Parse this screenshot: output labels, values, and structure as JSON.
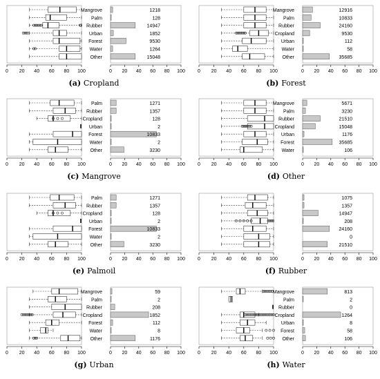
{
  "chart_data": [
    {
      "type": "boxplot",
      "caption_label": "(a)",
      "caption_text": "Cropland",
      "categories": [
        "Mangrove",
        "Palm",
        "Rubber",
        "Urban",
        "Forest",
        "Water",
        "Other"
      ],
      "counts": [
        "1218",
        "128",
        "14947",
        "1852",
        "9530",
        "1264",
        "15048"
      ],
      "bar_values": [
        3,
        1,
        35,
        4,
        22,
        3,
        35
      ],
      "boxes": [
        {
          "wlo": 30,
          "q1": 55,
          "med": 71,
          "q3": 93,
          "whi": 100,
          "out": []
        },
        {
          "wlo": 30,
          "q1": 52,
          "med": 58,
          "q3": 80,
          "whi": 100,
          "out": []
        },
        {
          "wlo": 30,
          "q1": 48,
          "med": 55,
          "q3": 70,
          "whi": 100,
          "out": [
            36,
            38,
            40,
            42,
            44,
            46,
            98,
            99
          ]
        },
        {
          "wlo": 30,
          "q1": 62,
          "med": 70,
          "q3": 80,
          "whi": 100,
          "out": [
            22,
            24,
            26,
            28
          ]
        },
        {
          "wlo": 30,
          "q1": 62,
          "med": 70,
          "q3": 98,
          "whi": 100,
          "out": []
        },
        {
          "wlo": 30,
          "q1": 70,
          "med": 80,
          "q3": 98,
          "whi": 100,
          "out": [
            36,
            38
          ]
        },
        {
          "wlo": 30,
          "q1": 70,
          "med": 80,
          "q3": 100,
          "whi": 100,
          "out": []
        }
      ],
      "box_ticks": [
        "0",
        "20",
        "40",
        "60",
        "80",
        "100"
      ],
      "bar_ticks": [
        "0",
        "20",
        "40",
        "60",
        "80",
        "100"
      ]
    },
    {
      "type": "boxplot",
      "caption_label": "(b)",
      "caption_text": "Forest",
      "categories": [
        "Mangrove",
        "Palm",
        "Rubber",
        "Cropland",
        "Urban",
        "Water",
        "Other"
      ],
      "counts": [
        "12916",
        "10833",
        "24160",
        "9530",
        "112",
        "58",
        "35685"
      ],
      "bar_values": [
        14,
        12,
        25,
        10,
        1,
        1,
        38
      ],
      "boxes": [
        {
          "wlo": 30,
          "q1": 60,
          "med": 75,
          "q3": 90,
          "whi": 100,
          "out": []
        },
        {
          "wlo": 30,
          "q1": 60,
          "med": 75,
          "q3": 90,
          "whi": 100,
          "out": []
        },
        {
          "wlo": 30,
          "q1": 60,
          "med": 75,
          "q3": 90,
          "whi": 100,
          "out": []
        },
        {
          "wlo": 30,
          "q1": 68,
          "med": 80,
          "q3": 93,
          "whi": 100,
          "out": [
            50,
            52,
            54,
            56,
            58,
            60,
            62
          ]
        },
        {
          "wlo": 30,
          "q1": 58,
          "med": 70,
          "q3": 90,
          "whi": 100,
          "out": []
        },
        {
          "wlo": 30,
          "q1": 45,
          "med": 52,
          "q3": 65,
          "whi": 100,
          "out": []
        },
        {
          "wlo": 30,
          "q1": 58,
          "med": 68,
          "q3": 88,
          "whi": 100,
          "out": []
        }
      ],
      "box_ticks": [
        "0",
        "20",
        "40",
        "60",
        "80",
        "100"
      ],
      "bar_ticks": [
        "0",
        "20",
        "40",
        "60",
        "80",
        "100"
      ]
    },
    {
      "type": "boxplot",
      "caption_label": "(c)",
      "caption_text": "Mangrove",
      "categories": [
        "Palm",
        "Rubber",
        "Cropland",
        "Urban",
        "Forest",
        "Water",
        "Other"
      ],
      "counts": [
        "1271",
        "1357",
        "128",
        "2",
        "10833",
        "2",
        "3230"
      ],
      "bar_values": [
        8,
        8,
        1,
        0.5,
        65,
        0.5,
        19
      ],
      "boxes": [
        {
          "wlo": 30,
          "q1": 58,
          "med": 70,
          "q3": 90,
          "whi": 100,
          "out": []
        },
        {
          "wlo": 30,
          "q1": 62,
          "med": 78,
          "q3": 92,
          "whi": 100,
          "out": []
        },
        {
          "wlo": 40,
          "q1": 55,
          "med": 62,
          "q3": 85,
          "whi": 100,
          "out": [
            62,
            68,
            74
          ]
        },
        null,
        {
          "wlo": 30,
          "q1": 62,
          "med": 88,
          "q3": 100,
          "whi": 100,
          "out": []
        },
        {
          "wlo": 30,
          "q1": 35,
          "med": 68,
          "q3": 100,
          "whi": 100,
          "out": []
        },
        {
          "wlo": 30,
          "q1": 55,
          "med": 65,
          "q3": 82,
          "whi": 100,
          "out": []
        }
      ],
      "box_ticks": [
        "0",
        "20",
        "40",
        "60",
        "80",
        "100"
      ],
      "bar_ticks": [
        "0",
        "20",
        "40",
        "60",
        "80",
        "100"
      ]
    },
    {
      "type": "boxplot",
      "caption_label": "(d)",
      "caption_text": "Other",
      "categories": [
        "Mangrove",
        "Palm",
        "Rubber",
        "Cropland",
        "Urban",
        "Forest",
        "Water"
      ],
      "counts": [
        "5671",
        "3230",
        "21510",
        "15048",
        "1176",
        "35685",
        "106"
      ],
      "bar_values": [
        6,
        4,
        25,
        18,
        2,
        42,
        1
      ],
      "boxes": [
        {
          "wlo": 30,
          "q1": 60,
          "med": 75,
          "q3": 90,
          "whi": 100,
          "out": []
        },
        {
          "wlo": 30,
          "q1": 60,
          "med": 75,
          "q3": 90,
          "whi": 100,
          "out": []
        },
        {
          "wlo": 30,
          "q1": 65,
          "med": 88,
          "q3": 100,
          "whi": 100,
          "out": []
        },
        {
          "wlo": 30,
          "q1": 65,
          "med": 88,
          "q3": 100,
          "whi": 100,
          "out": [
            58,
            60,
            62,
            64,
            66,
            68,
            70
          ]
        },
        {
          "wlo": 30,
          "q1": 60,
          "med": 75,
          "q3": 90,
          "whi": 100,
          "out": []
        },
        {
          "wlo": 30,
          "q1": 58,
          "med": 78,
          "q3": 92,
          "whi": 100,
          "out": []
        },
        {
          "wlo": 30,
          "q1": 55,
          "med": 60,
          "q3": 85,
          "whi": 100,
          "out": []
        }
      ],
      "box_ticks": [
        "0",
        "20",
        "40",
        "60",
        "80",
        "100"
      ],
      "bar_ticks": [
        "0",
        "20",
        "40",
        "60",
        "80",
        "100"
      ]
    },
    {
      "type": "boxplot",
      "caption_label": "(e)",
      "caption_text": "Palmoil",
      "categories": [
        "Palm",
        "Rubber",
        "Cropland",
        "Urban",
        "Forest",
        "Water",
        "Other"
      ],
      "counts": [
        "1271",
        "1357",
        "128",
        "2",
        "10833",
        "2",
        "3230"
      ],
      "bar_values": [
        8,
        8,
        1,
        0.5,
        65,
        0.5,
        19
      ],
      "boxes": [
        {
          "wlo": 30,
          "q1": 58,
          "med": 70,
          "q3": 90,
          "whi": 100,
          "out": []
        },
        {
          "wlo": 30,
          "q1": 62,
          "med": 78,
          "q3": 92,
          "whi": 100,
          "out": []
        },
        {
          "wlo": 40,
          "q1": 55,
          "med": 62,
          "q3": 85,
          "whi": 100,
          "out": [
            62,
            68,
            74
          ]
        },
        null,
        {
          "wlo": 30,
          "q1": 62,
          "med": 88,
          "q3": 100,
          "whi": 100,
          "out": []
        },
        {
          "wlo": 30,
          "q1": 35,
          "med": 68,
          "q3": 100,
          "whi": 100,
          "out": []
        },
        {
          "wlo": 30,
          "q1": 55,
          "med": 65,
          "q3": 82,
          "whi": 100,
          "out": []
        }
      ],
      "box_ticks": [
        "0",
        "20",
        "40",
        "60",
        "80",
        "100"
      ],
      "bar_ticks": [
        "0",
        "20",
        "40",
        "60",
        "80",
        "100"
      ]
    },
    {
      "type": "boxplot",
      "caption_label": "(f)",
      "caption_text": "Rubber",
      "categories": [
        "",
        "",
        "",
        "",
        "",
        "",
        ""
      ],
      "counts": [
        "1075",
        "1357",
        "14947",
        "208",
        "24160",
        "0",
        "21510"
      ],
      "bar_values": [
        2,
        2,
        22,
        1,
        38,
        0,
        35
      ],
      "boxes": [
        {
          "wlo": 30,
          "q1": 65,
          "med": 75,
          "q3": 92,
          "whi": 100,
          "out": []
        },
        {
          "wlo": 30,
          "q1": 62,
          "med": 72,
          "q3": 90,
          "whi": 100,
          "out": []
        },
        {
          "wlo": 30,
          "q1": 65,
          "med": 78,
          "q3": 92,
          "whi": 100,
          "out": []
        },
        {
          "wlo": 30,
          "q1": 70,
          "med": 82,
          "q3": 92,
          "whi": 100,
          "out": [
            50,
            55,
            60,
            65,
            70,
            93,
            95,
            97,
            99
          ]
        },
        {
          "wlo": 30,
          "q1": 60,
          "med": 72,
          "q3": 90,
          "whi": 100,
          "out": []
        },
        {
          "wlo": 30,
          "q1": 60,
          "med": 80,
          "q3": 95,
          "whi": 100,
          "out": []
        },
        {
          "wlo": 30,
          "q1": 60,
          "med": 80,
          "q3": 95,
          "whi": 100,
          "out": []
        }
      ],
      "box_ticks": [
        "0",
        "20",
        "40",
        "60",
        "80",
        "100"
      ],
      "bar_ticks": [
        "0",
        "20",
        "40",
        "60",
        "80",
        "100"
      ]
    },
    {
      "type": "boxplot",
      "caption_label": "(g)",
      "caption_text": "Urban",
      "categories": [
        "Mangrove",
        "Palm",
        "Rubber",
        "Cropland",
        "Forest",
        "Water",
        "Other"
      ],
      "counts": [
        "59",
        "2",
        "208",
        "1852",
        "112",
        "8",
        "1176"
      ],
      "bar_values": [
        2,
        0.5,
        6,
        54,
        3,
        0.5,
        35
      ],
      "boxes": [
        {
          "wlo": 35,
          "q1": 60,
          "med": 70,
          "q3": 95,
          "whi": 100,
          "out": []
        },
        {
          "wlo": 30,
          "q1": 55,
          "med": 65,
          "q3": 80,
          "whi": 100,
          "out": []
        },
        {
          "wlo": 30,
          "q1": 60,
          "med": 78,
          "q3": 100,
          "whi": 100,
          "out": []
        },
        {
          "wlo": 30,
          "q1": 62,
          "med": 75,
          "q3": 92,
          "whi": 100,
          "out": [
            20,
            22,
            24,
            26,
            28,
            30,
            32,
            34
          ]
        },
        {
          "wlo": 30,
          "q1": 52,
          "med": 60,
          "q3": 70,
          "whi": 100,
          "out": []
        },
        {
          "wlo": 30,
          "q1": 45,
          "med": 52,
          "q3": 55,
          "whi": 62,
          "out": []
        },
        {
          "wlo": 30,
          "q1": 72,
          "med": 82,
          "q3": 98,
          "whi": 100,
          "out": [
            36,
            38,
            40
          ]
        }
      ],
      "box_ticks": [
        "0",
        "20",
        "40",
        "60",
        "80",
        "100"
      ],
      "bar_ticks": [
        "0",
        "20",
        "40",
        "60",
        "80",
        "100"
      ]
    },
    {
      "type": "boxplot",
      "caption_label": "(h)",
      "caption_text": "Water",
      "categories": [
        "Mangrove",
        "Palm",
        "Rubber",
        "Cropland",
        "Urban",
        "Forest",
        "Other"
      ],
      "counts": [
        "813",
        "2",
        "0",
        "1264",
        "8",
        "58",
        "106"
      ],
      "bar_values": [
        35,
        0.5,
        0,
        54,
        1,
        3,
        4
      ],
      "boxes": [
        {
          "wlo": 30,
          "q1": 50,
          "med": 55,
          "q3": 62,
          "whi": 85,
          "out": [
            86,
            88,
            90,
            92,
            94,
            96,
            98
          ]
        },
        {
          "wlo": 40,
          "q1": 40,
          "med": 43,
          "q3": 45,
          "whi": 45,
          "out": []
        },
        null,
        {
          "wlo": 30,
          "q1": 55,
          "med": 60,
          "q3": 75,
          "whi": 80,
          "out": [
            62,
            64,
            66,
            68,
            70,
            72,
            74,
            76,
            78,
            80,
            82,
            84,
            86,
            88,
            90,
            92,
            94,
            96,
            98,
            100
          ]
        },
        {
          "wlo": 30,
          "q1": 55,
          "med": 65,
          "q3": 75,
          "whi": 90,
          "out": []
        },
        {
          "wlo": 30,
          "q1": 50,
          "med": 60,
          "q3": 68,
          "whi": 85,
          "out": [
            90,
            95,
            100
          ]
        },
        {
          "wlo": 30,
          "q1": 55,
          "med": 62,
          "q3": 72,
          "whi": 85,
          "out": [
            92,
            96,
            100
          ]
        }
      ],
      "box_ticks": [
        "0",
        "20",
        "40",
        "60",
        "80",
        "100"
      ],
      "bar_ticks": [
        "0",
        "20",
        "40",
        "60",
        "80",
        "100"
      ]
    }
  ]
}
